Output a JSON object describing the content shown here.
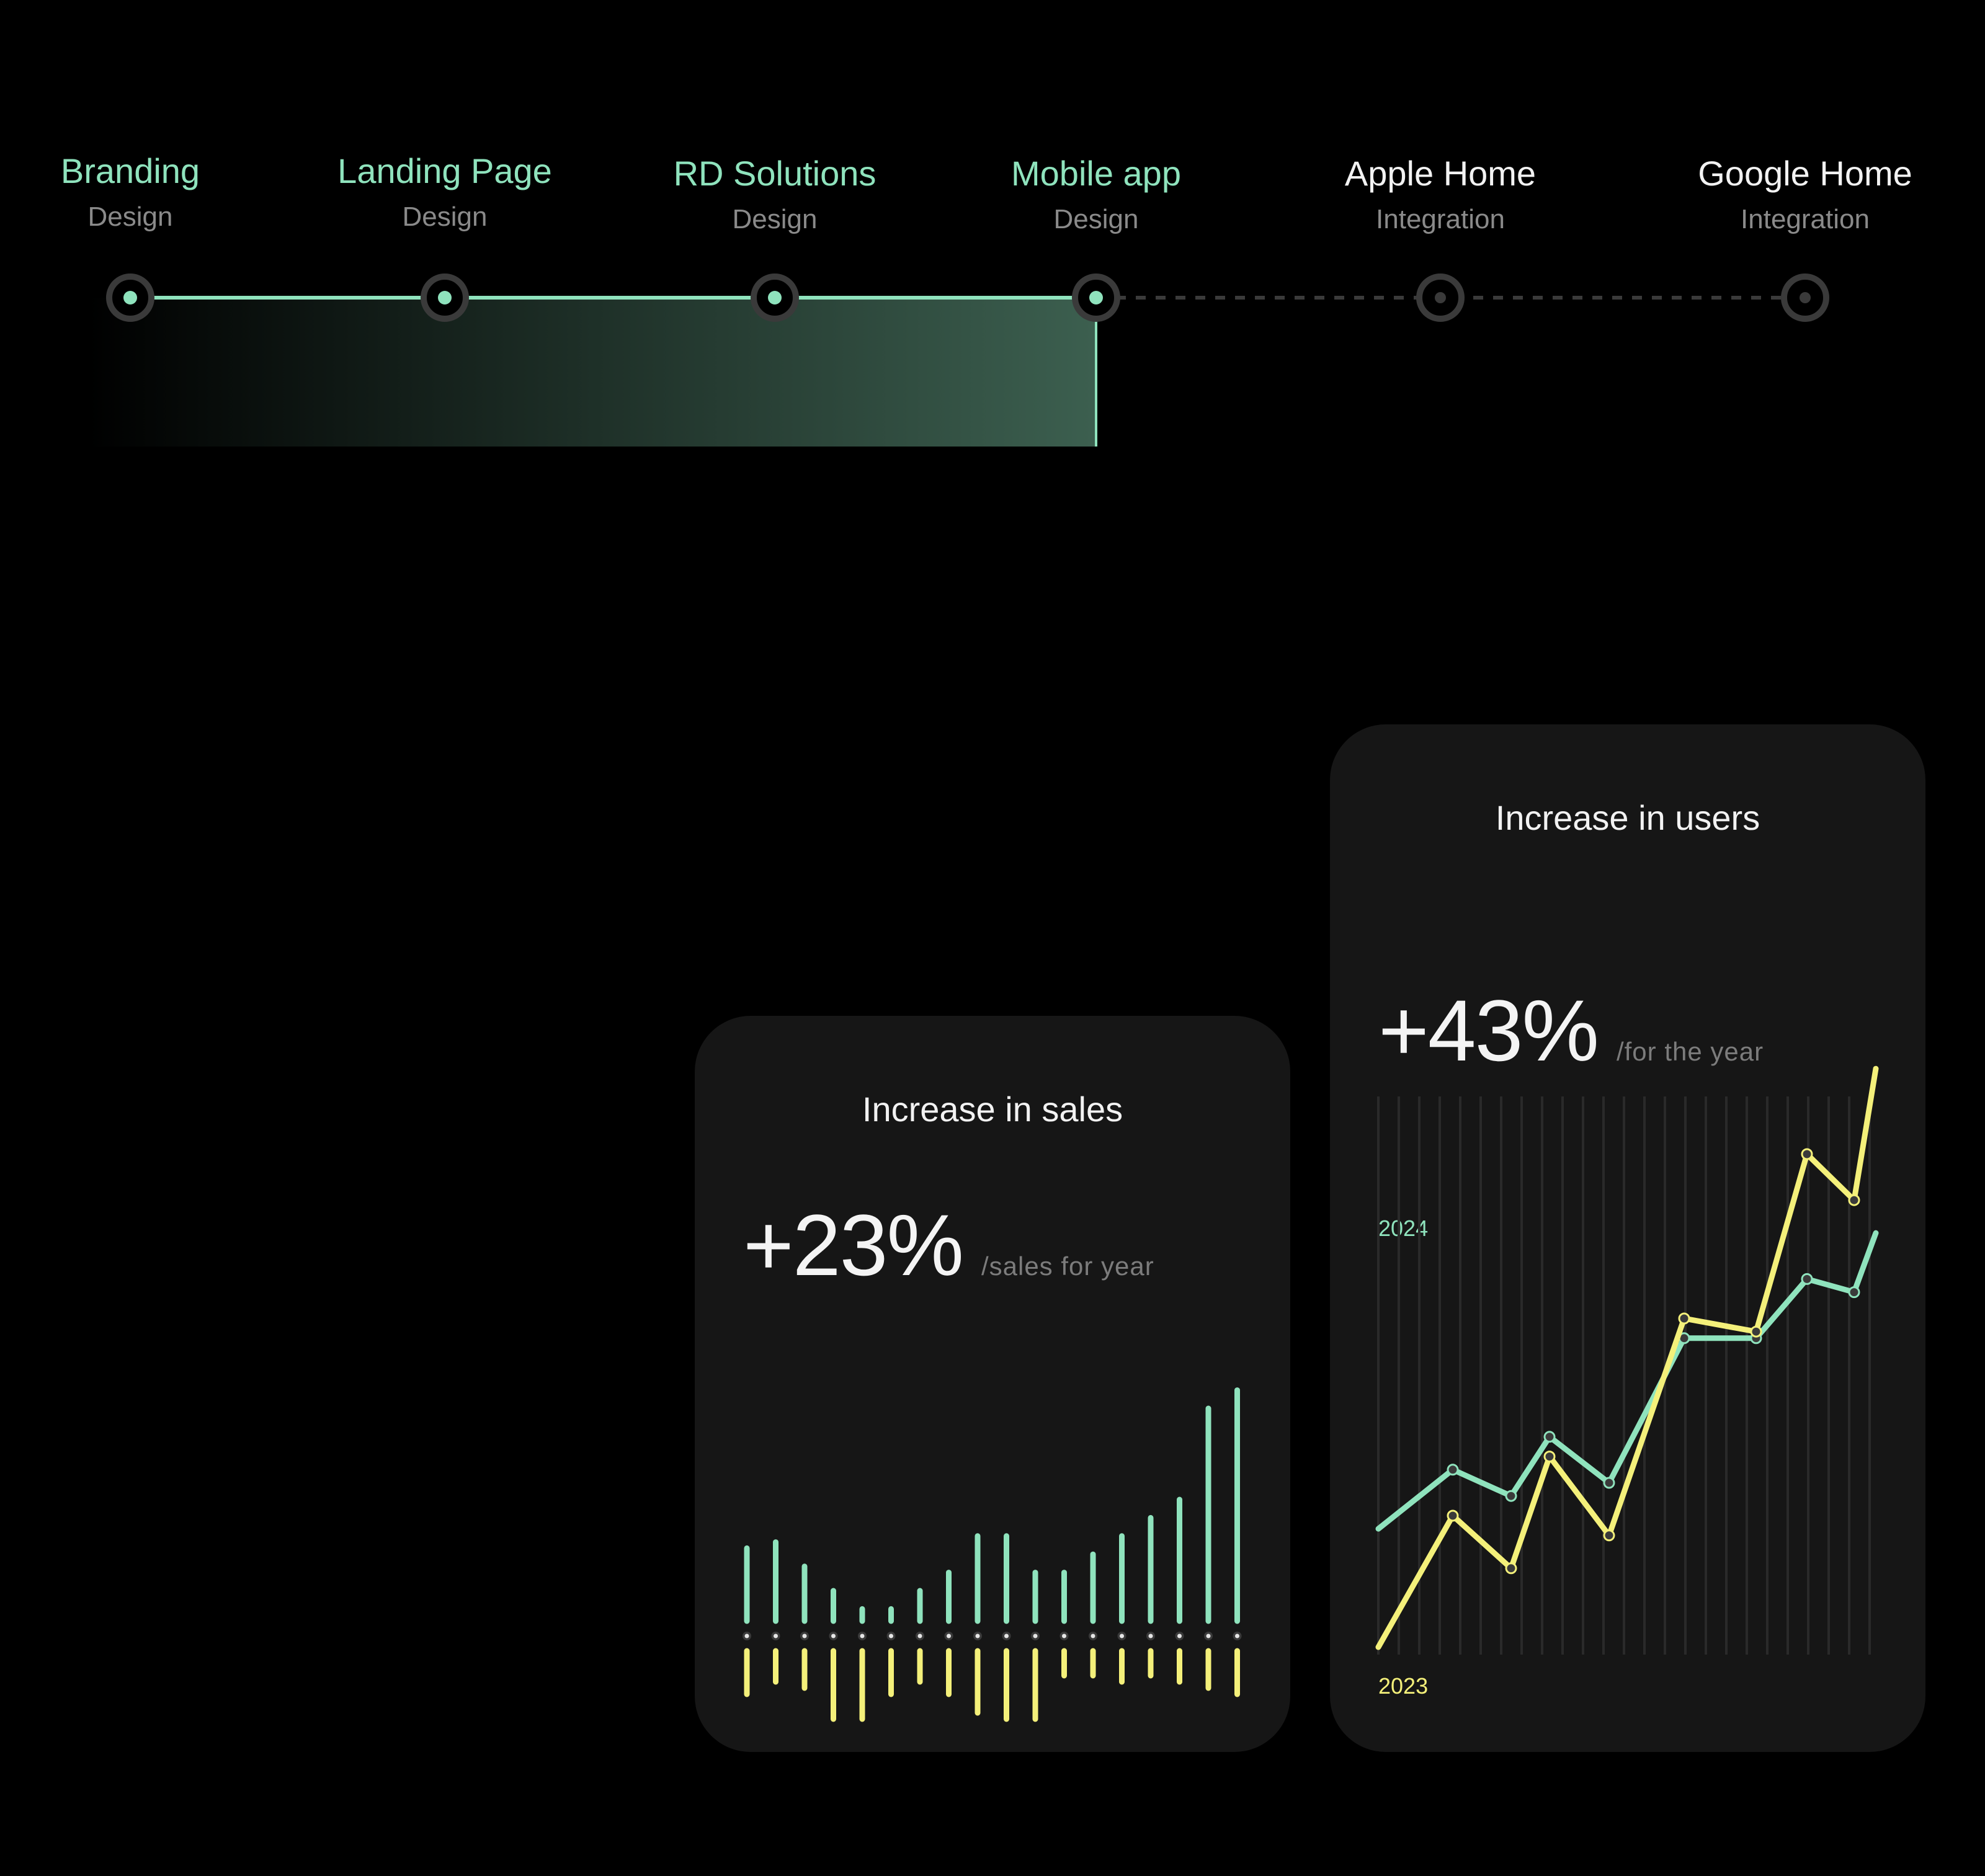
{
  "timeline": {
    "colors": {
      "done": "#8fe3bd",
      "pending": "#3a3a3a"
    },
    "steps": [
      {
        "title": "Branding",
        "subtitle": "Design",
        "status": "done"
      },
      {
        "title": "Landing Page",
        "subtitle": "Design",
        "status": "done"
      },
      {
        "title": "RD Solutions",
        "subtitle": "Design",
        "status": "done"
      },
      {
        "title": "Mobile app",
        "subtitle": "Design",
        "status": "done"
      },
      {
        "title": "Apple Home",
        "subtitle": "Integration",
        "status": "pending"
      },
      {
        "title": "Google Home",
        "subtitle": "Integration",
        "status": "pending"
      }
    ]
  },
  "sales_card": {
    "title": "Increase in sales",
    "stat_value": "+23%",
    "stat_suffix": "/sales for year"
  },
  "users_card": {
    "title": "Increase in users",
    "stat_value": "+43%",
    "stat_suffix": "/for the year",
    "legend_2024": "2024",
    "legend_2023": "2023"
  },
  "colors": {
    "green": "#8fe3bd",
    "yellow": "#f4f07a",
    "card_bg": "#161616"
  },
  "chart_data": [
    {
      "type": "bar",
      "title": "Increase in sales",
      "series": [
        {
          "values": [
            12,
            13,
            9,
            5,
            2,
            2,
            5,
            8,
            14,
            14,
            8,
            8,
            11,
            14,
            17,
            20,
            35,
            38
          ]
        },
        {
          "values": [
            7,
            5,
            6,
            11,
            11,
            7,
            5,
            7,
            10,
            11,
            11,
            4,
            4,
            5,
            4,
            5,
            6,
            7
          ]
        }
      ]
    },
    {
      "type": "line",
      "title": "Increase in users",
      "series": [
        {
          "name": "2024",
          "values": [
            18,
            27,
            23,
            32,
            25,
            47,
            47,
            56,
            54,
            63
          ]
        },
        {
          "name": "2023",
          "values": [
            0,
            20,
            12,
            29,
            17,
            50,
            48,
            75,
            68,
            88
          ]
        }
      ]
    }
  ]
}
